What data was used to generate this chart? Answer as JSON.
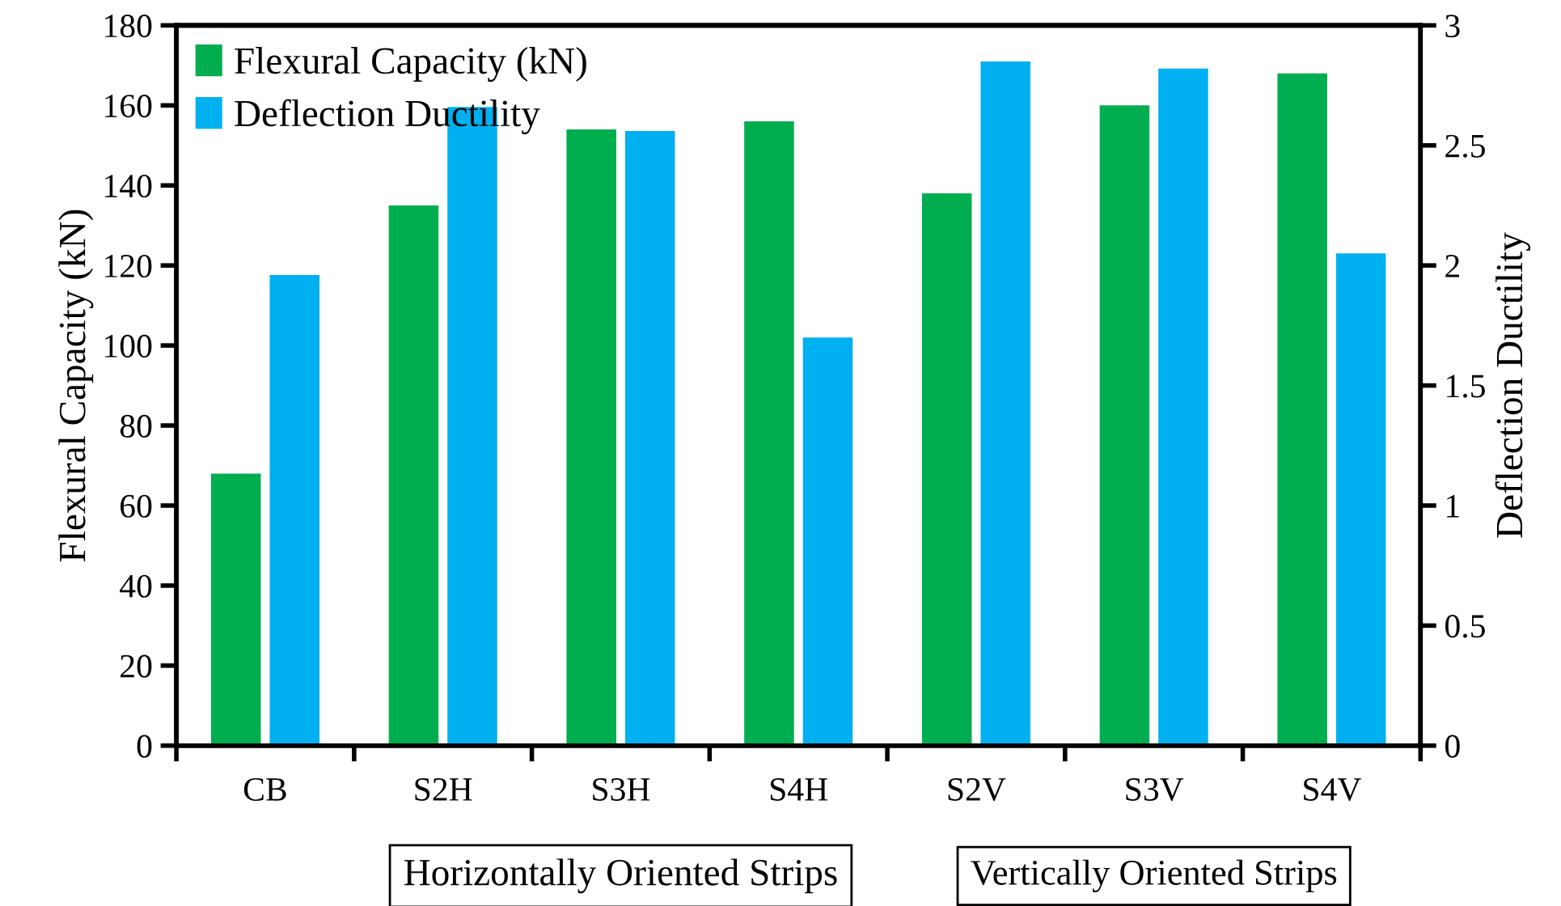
{
  "chart_data": {
    "type": "bar",
    "ylabel": "Flexural Capacity (kN)",
    "y2label": "Deflection Ductility",
    "categories": [
      "CB",
      "S2H",
      "S3H",
      "S4H",
      "S2V",
      "S3V",
      "S4V"
    ],
    "series": [
      {
        "name": "Flexural Capacity (kN)",
        "color": "#00ad4f",
        "values": [
          68,
          135,
          154,
          156,
          138,
          160,
          168
        ]
      },
      {
        "name": "Deflection Ductility",
        "color": "#00b0f0",
        "axis": "y2",
        "values": [
          1.96,
          2.66,
          2.56,
          1.7,
          2.85,
          2.82,
          2.05
        ]
      }
    ],
    "ylim": [
      0,
      180
    ],
    "yticks": [
      0,
      20,
      40,
      60,
      80,
      100,
      120,
      140,
      160,
      180
    ],
    "y2lim": [
      0,
      3
    ],
    "y2ticks": [
      0,
      0.5,
      1,
      1.5,
      2,
      2.5,
      3
    ],
    "annotations": [
      "Horizontally Oriented Strips",
      "Vertically Oriented Strips"
    ],
    "legend": "top left",
    "grid": false
  }
}
